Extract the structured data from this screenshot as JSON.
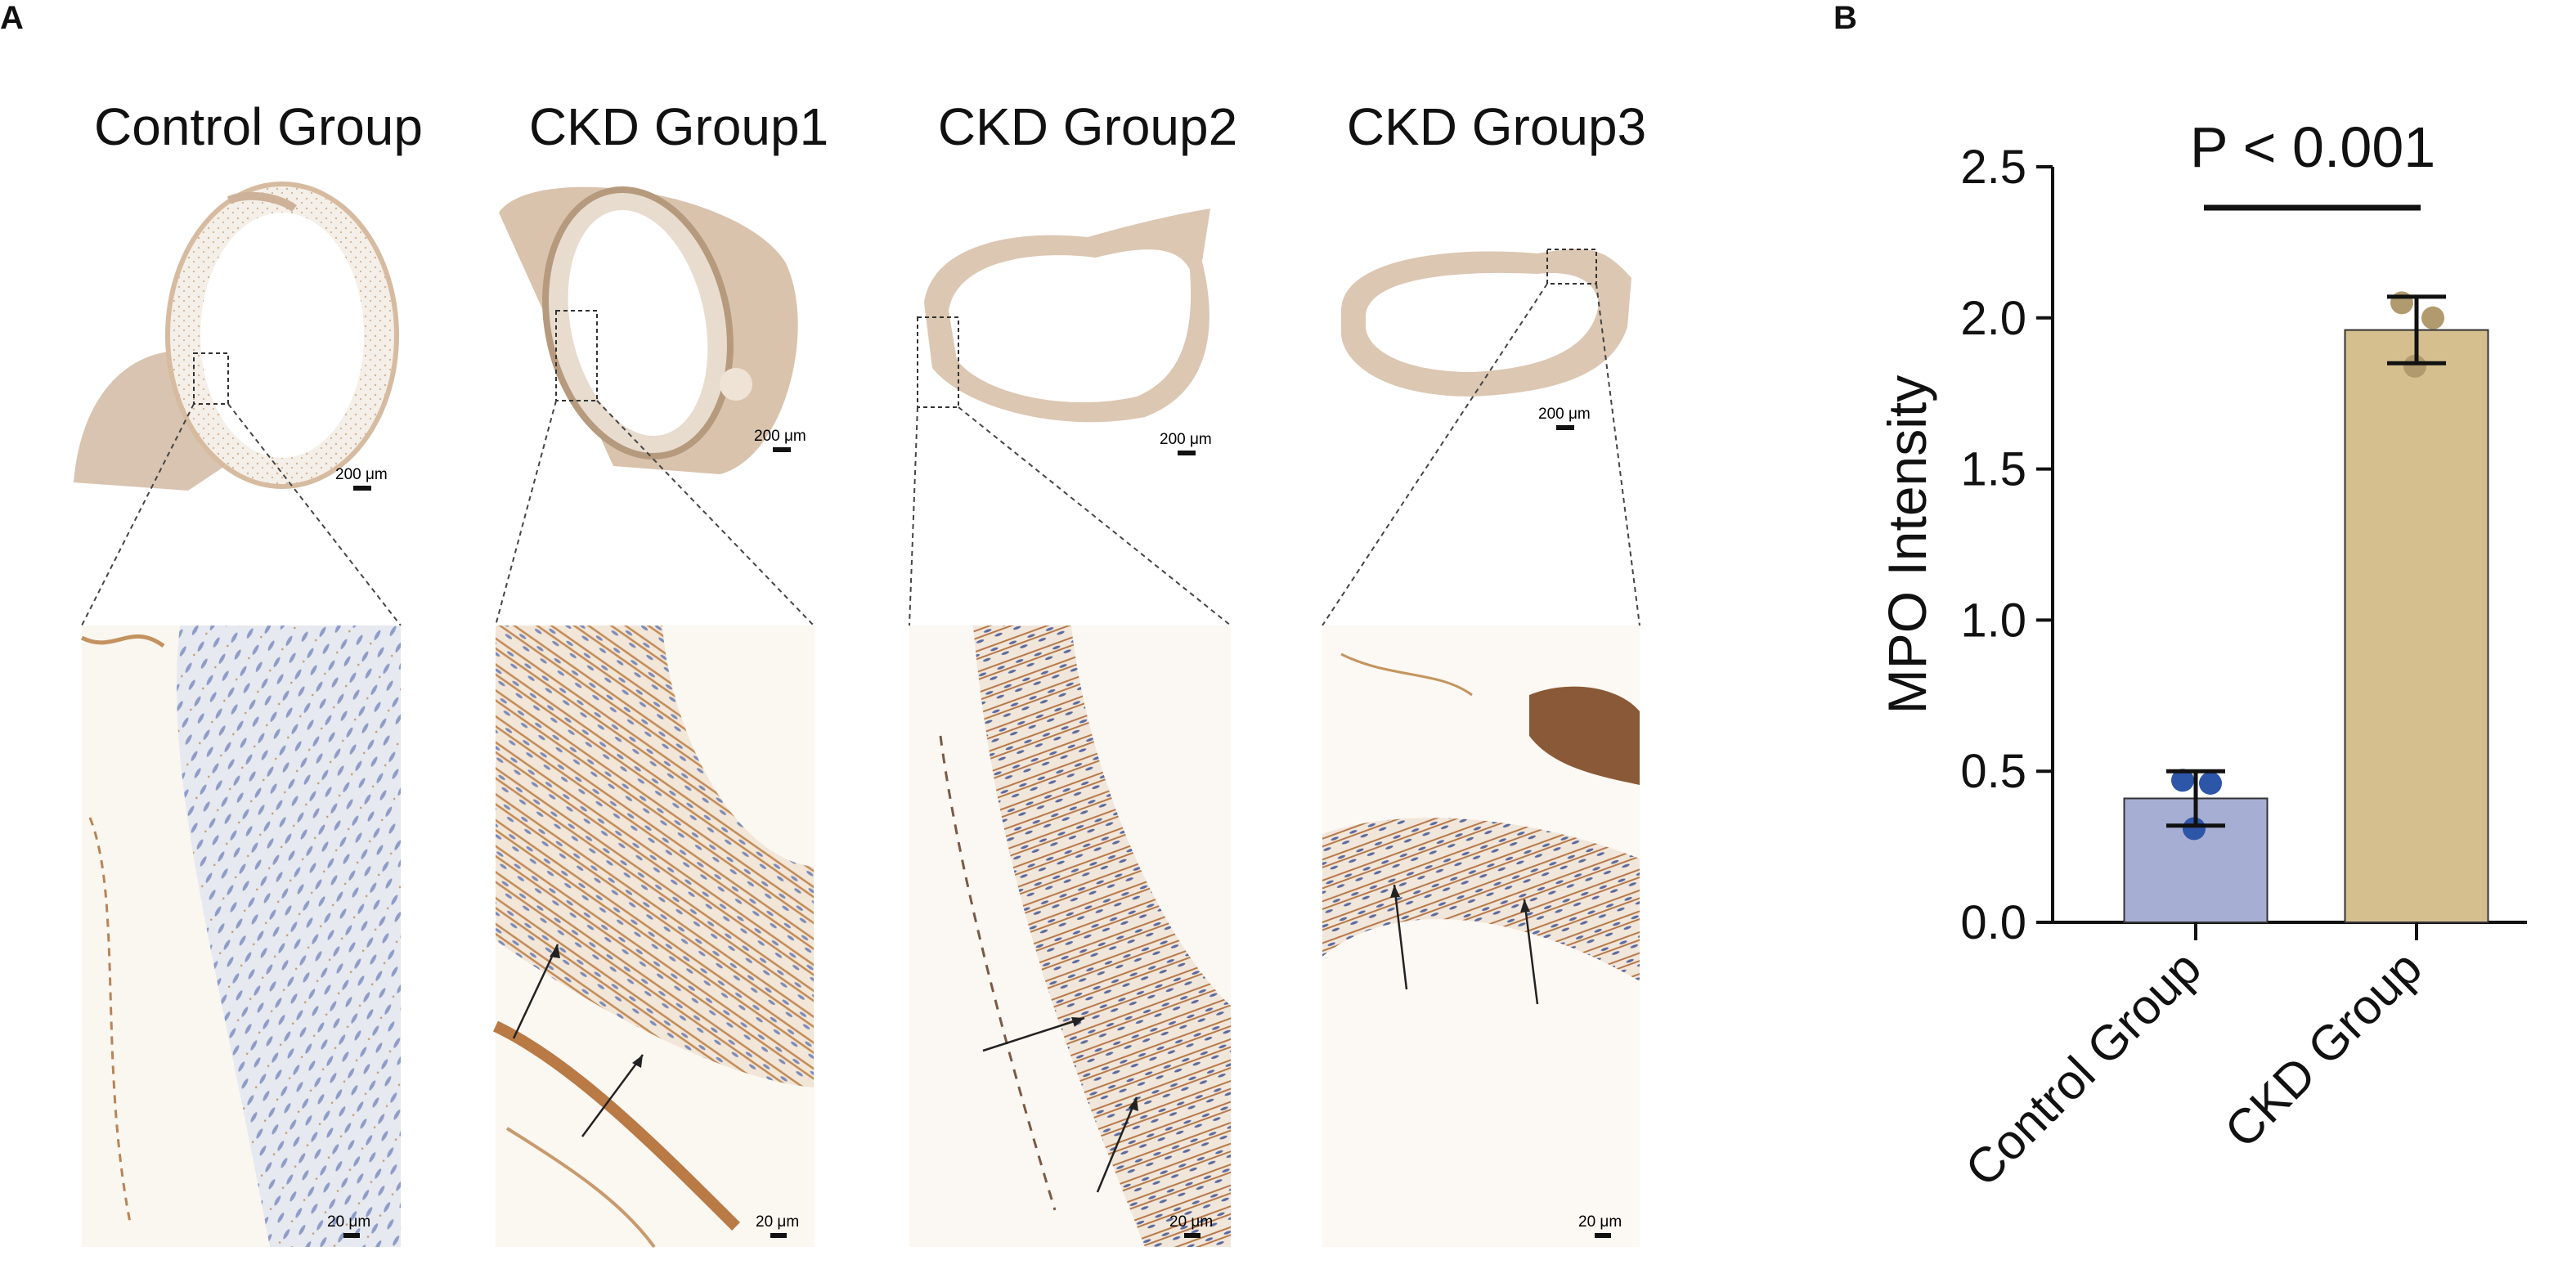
{
  "panel_a": {
    "letter": "A",
    "groups": [
      {
        "title": "Control Group",
        "overview_scale": "200 μm",
        "zoom_scale": "20 μm",
        "arrow_count": 0
      },
      {
        "title": "CKD Group1",
        "overview_scale": "200 μm",
        "zoom_scale": "20 μm",
        "arrow_count": 2
      },
      {
        "title": "CKD Group2",
        "overview_scale": "200 μm",
        "zoom_scale": "20 μm",
        "arrow_count": 2
      },
      {
        "title": "CKD Group3",
        "overview_scale": "200 μm",
        "zoom_scale": "20 μm",
        "arrow_count": 2
      }
    ]
  },
  "panel_b": {
    "letter": "B",
    "significance": "P < 0.001"
  },
  "colors": {
    "control_bar": "#a6aed3",
    "control_points": "#2d55a8",
    "ckd_bar": "#d6bf8f",
    "ckd_points": "#b09a6e",
    "tissue_light": "#f3ede6",
    "tissue_stain": "#c08a55",
    "nuclei": "#8090b8"
  },
  "chart_data": {
    "type": "bar",
    "categories": [
      "Control Group",
      "CKD Group"
    ],
    "values": [
      0.41,
      1.96
    ],
    "error": [
      0.09,
      0.11
    ],
    "points": [
      [
        0.47,
        0.46,
        0.31
      ],
      [
        2.05,
        2.0,
        1.84
      ]
    ],
    "ylabel": "MPO Intensity",
    "ylim": [
      0,
      2.5
    ],
    "yticks": [
      "0.0",
      "0.5",
      "1.0",
      "1.5",
      "2.0",
      "2.5"
    ],
    "grid": false,
    "legend": "none"
  }
}
